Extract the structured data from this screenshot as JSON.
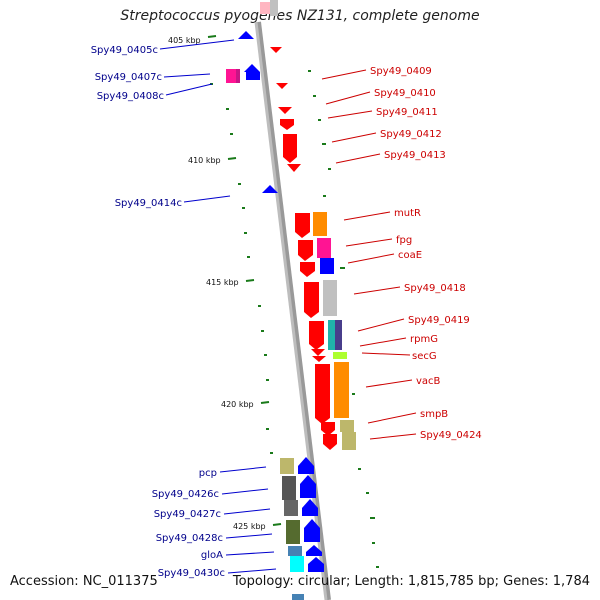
{
  "title": "Streptococcus pyogenes NZ131, complete genome",
  "accession": "Accession: NC_011375",
  "summary": "Topology: circular; Length: 1,815,785 bp; Genes: 1,784",
  "ticks": [
    "405 kbp",
    "410 kbp",
    "415 kbp",
    "420 kbp",
    "425 kbp"
  ],
  "left_labels": [
    "Spy49_0405c",
    "Spy49_0407c",
    "Spy49_0408c",
    "Spy49_0414c",
    "pcp",
    "Spy49_0426c",
    "Spy49_0427c",
    "Spy49_0428c",
    "gloA",
    "Spy49_0430c"
  ],
  "right_labels": [
    "Spy49_0409",
    "Spy49_0410",
    "Spy49_0411",
    "Spy49_0412",
    "Spy49_0413",
    "mutR",
    "fpg",
    "coaE",
    "Spy49_0418",
    "Spy49_0419",
    "rpmG",
    "secG",
    "vacB",
    "smpB",
    "Spy49_0424"
  ],
  "colors": {
    "forward": "#ff0000",
    "reverse": "#0000ff",
    "left_label": "#00008b",
    "right_label": "#cc0000",
    "tick": "#1a7a1a"
  }
}
